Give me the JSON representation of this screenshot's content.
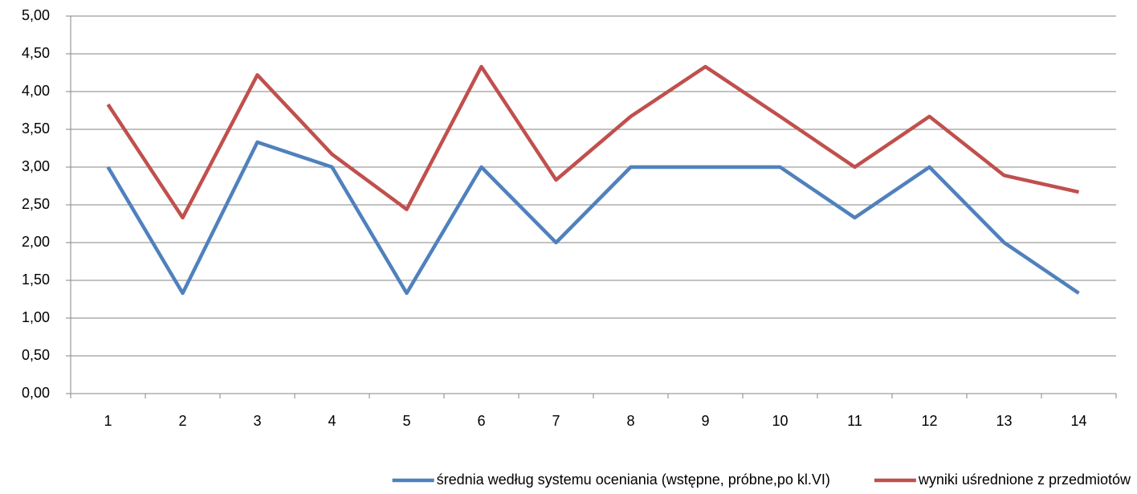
{
  "chart_data": {
    "type": "line",
    "categories": [
      "1",
      "2",
      "3",
      "4",
      "5",
      "6",
      "7",
      "8",
      "9",
      "10",
      "11",
      "12",
      "13",
      "14"
    ],
    "series": [
      {
        "name": "średnia według systemu oceniania (wstępne, próbne,po kl.VI)",
        "color": "#4f81bd",
        "values": [
          3.0,
          1.33,
          3.33,
          3.0,
          1.33,
          3.0,
          2.0,
          3.0,
          3.0,
          3.0,
          2.33,
          3.0,
          2.0,
          1.33
        ]
      },
      {
        "name": "wyniki uśrednione z przedmiotów",
        "color": "#c0504d",
        "values": [
          3.83,
          2.33,
          4.22,
          3.17,
          2.44,
          4.33,
          2.83,
          3.67,
          4.33,
          3.67,
          3.0,
          3.67,
          2.89,
          2.67
        ]
      }
    ],
    "ylim": [
      0,
      5
    ],
    "yticks": [
      {
        "value": 0,
        "label": "0,00"
      },
      {
        "value": 0.5,
        "label": "0,50"
      },
      {
        "value": 1,
        "label": "1,00"
      },
      {
        "value": 1.5,
        "label": "1,50"
      },
      {
        "value": 2,
        "label": "2,00"
      },
      {
        "value": 2.5,
        "label": "2,50"
      },
      {
        "value": 3,
        "label": "3,00"
      },
      {
        "value": 3.5,
        "label": "3,50"
      },
      {
        "value": 4,
        "label": "4,00"
      },
      {
        "value": 4.5,
        "label": "4,50"
      },
      {
        "value": 5,
        "label": "5,00"
      }
    ],
    "grid": true,
    "legend": "bottom"
  }
}
